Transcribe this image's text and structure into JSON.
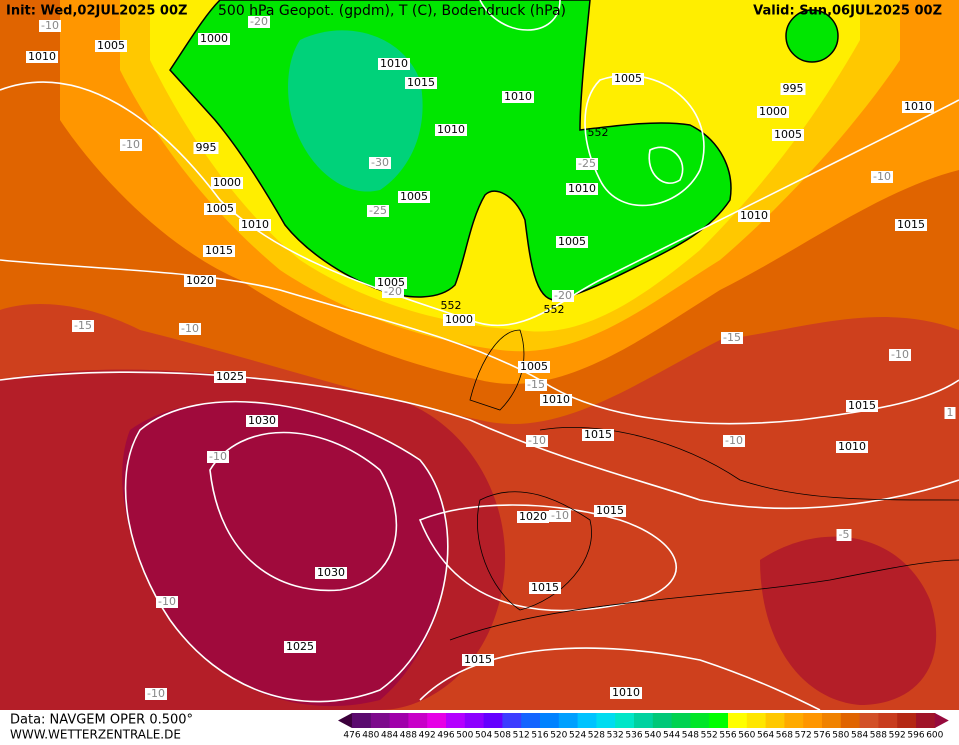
{
  "header": {
    "init": "Init: Wed,02JUL2025 00Z",
    "title": "500 hPa Geopot. (gpdm), T (C), Bodendruck (hPa)",
    "valid": "Valid: Sun,06JUL2025 00Z"
  },
  "map": {
    "isobar_labels": [
      "1010",
      "1005",
      "1000",
      "1010",
      "1015",
      "1010",
      "1010",
      "1005",
      "995",
      "1000",
      "1005",
      "1010",
      "995",
      "1000",
      "1005",
      "1010",
      "1005",
      "1010",
      "1005",
      "1010",
      "1015",
      "1015",
      "1020",
      "1005",
      "1000",
      "1005",
      "1010",
      "1015",
      "1025",
      "1030",
      "1020",
      "1015",
      "1015",
      "1010",
      "1030",
      "1015",
      "1025",
      "1015",
      "1010"
    ],
    "temperature_labels": [
      "-10",
      "-20",
      "-10",
      "-30",
      "-25",
      "-25",
      "-10",
      "-20",
      "-20",
      "-15",
      "-10",
      "-15",
      "-10",
      "-15",
      "-10",
      "-10",
      "-10",
      "-10",
      "-5",
      "-10",
      "-10",
      "1"
    ],
    "geopotential_labels": [
      "552",
      "552",
      "552"
    ]
  },
  "footer": {
    "data_source": "Data: NAVGEM OPER 0.500°",
    "website": "WWW.WETTERZENTRALE.DE"
  },
  "colorbar": {
    "labels": [
      476,
      480,
      484,
      488,
      492,
      496,
      500,
      504,
      508,
      512,
      516,
      520,
      524,
      528,
      532,
      536,
      540,
      544,
      548,
      552,
      556,
      560,
      564,
      568,
      572,
      576,
      580,
      584,
      588,
      592,
      596,
      600
    ],
    "colors": [
      "#3c003c",
      "#5a0a6e",
      "#7d0a8c",
      "#a000aa",
      "#c800c8",
      "#e600e6",
      "#b400ff",
      "#8c00ff",
      "#6400ff",
      "#3c3cff",
      "#1464ff",
      "#0082ff",
      "#00a0ff",
      "#00c3ff",
      "#00dcf0",
      "#00e6c8",
      "#00d2a0",
      "#00c878",
      "#00d250",
      "#00e628",
      "#00ff00",
      "#ffff00",
      "#ffe600",
      "#ffc800",
      "#ffaa00",
      "#ff9600",
      "#f08200",
      "#e06400",
      "#d25028",
      "#c83c1e",
      "#b42814",
      "#a01428",
      "#960a3c"
    ]
  }
}
